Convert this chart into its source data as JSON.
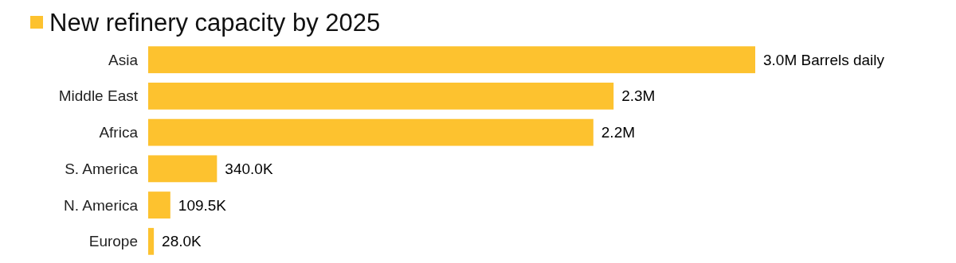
{
  "chart_data": {
    "type": "bar",
    "orientation": "horizontal",
    "categories": [
      "Asia",
      "Middle East",
      "Africa",
      "S. America",
      "N. America",
      "Europe"
    ],
    "series": [
      {
        "name": "New refinery capacity by 2025",
        "color": "#fdc22f",
        "values": [
          3000000,
          2300000,
          2200000,
          340000,
          109500,
          28000
        ],
        "value_labels": [
          "3.0M Barrels daily",
          "2.3M",
          "2.2M",
          "340.0K",
          "109.5K",
          "28.0K"
        ]
      }
    ],
    "legend": "top left"
  }
}
